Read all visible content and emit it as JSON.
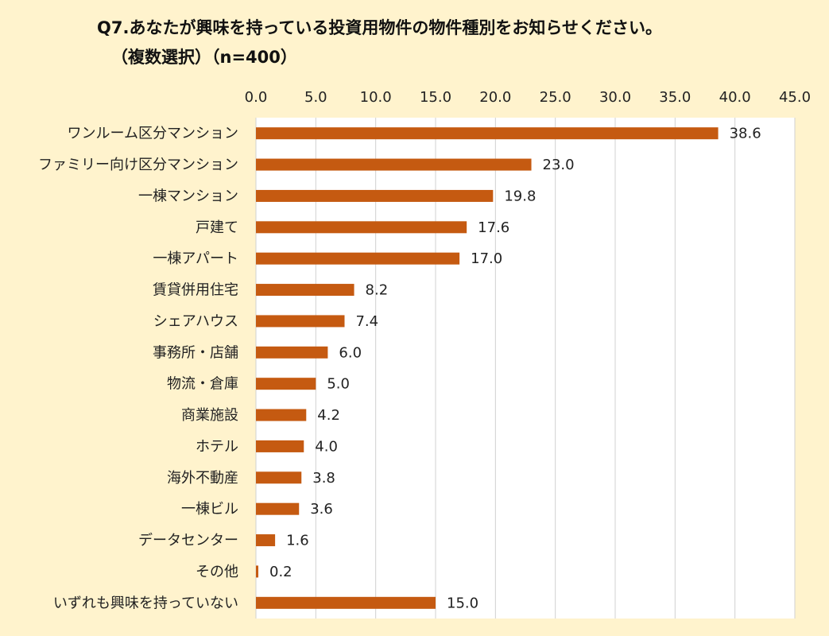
{
  "colors": {
    "background": "#fff3cd",
    "plot_area": "#ffffff",
    "bar": "#c55a11",
    "grid": "#d0d0d0"
  },
  "chart_data": {
    "type": "bar",
    "orientation": "horizontal",
    "title": "Q7.あなたが興味を持っている投資用物件の物件種別をお知らせください。",
    "subtitle": "（複数選択）（n=400）",
    "xlim": [
      0,
      45
    ],
    "ticks": [
      "0.0",
      "5.0",
      "10.0",
      "15.0",
      "20.0",
      "25.0",
      "30.0",
      "35.0",
      "40.0",
      "45.0"
    ],
    "categories": [
      "ワンルーム区分マンション",
      "ファミリー向け区分マンション",
      "一棟マンション",
      "戸建て",
      "一棟アパート",
      "賃貸併用住宅",
      "シェアハウス",
      "事務所・店舗",
      "物流・倉庫",
      "商業施設",
      "ホテル",
      "海外不動産",
      "一棟ビル",
      "データセンター",
      "その他",
      "いずれも興味を持っていない"
    ],
    "values": [
      38.6,
      23.0,
      19.8,
      17.6,
      17.0,
      8.2,
      7.4,
      6.0,
      5.0,
      4.2,
      4.0,
      3.8,
      3.6,
      1.6,
      0.2,
      15.0
    ],
    "value_labels": [
      "38.6",
      "23.0",
      "19.8",
      "17.6",
      "17.0",
      "8.2",
      "7.4",
      "6.0",
      "5.0",
      "4.2",
      "4.0",
      "3.8",
      "3.6",
      "1.6",
      "0.2",
      "15.0"
    ],
    "grid": true,
    "legend": "none"
  }
}
